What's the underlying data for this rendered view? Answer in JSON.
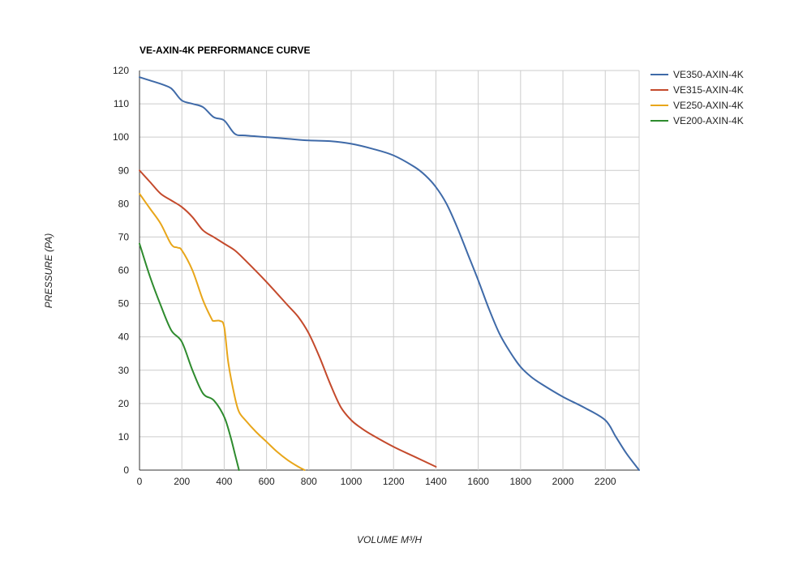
{
  "chart_data": {
    "type": "line",
    "title": "VE-AXIN-4K PERFORMANCE CURVE",
    "xlabel": "VOLUME M³/H",
    "ylabel": "PRESSURE (PA)",
    "xlim": [
      0,
      2360
    ],
    "ylim": [
      0,
      120
    ],
    "x_ticks": [
      0,
      200,
      400,
      600,
      800,
      1000,
      1200,
      1400,
      1600,
      1800,
      2000,
      2200
    ],
    "y_ticks": [
      0,
      10,
      20,
      30,
      40,
      50,
      60,
      70,
      80,
      90,
      100,
      110,
      120
    ],
    "grid": true,
    "legend_position": "right",
    "series": [
      {
        "name": "VE350-AXIN-4K",
        "color": "#3f6aa8",
        "points": [
          [
            0,
            118
          ],
          [
            50,
            117
          ],
          [
            100,
            116
          ],
          [
            140,
            115
          ],
          [
            160,
            114
          ],
          [
            200,
            111
          ],
          [
            250,
            110
          ],
          [
            300,
            109
          ],
          [
            350,
            106
          ],
          [
            400,
            105
          ],
          [
            450,
            101
          ],
          [
            500,
            100.5
          ],
          [
            600,
            100
          ],
          [
            700,
            99.5
          ],
          [
            800,
            99
          ],
          [
            900,
            98.8
          ],
          [
            1000,
            98
          ],
          [
            1100,
            96.5
          ],
          [
            1200,
            94.5
          ],
          [
            1300,
            91
          ],
          [
            1350,
            88.5
          ],
          [
            1400,
            85
          ],
          [
            1450,
            80
          ],
          [
            1500,
            73
          ],
          [
            1550,
            65
          ],
          [
            1600,
            57
          ],
          [
            1650,
            48.5
          ],
          [
            1700,
            41
          ],
          [
            1750,
            35.5
          ],
          [
            1800,
            31
          ],
          [
            1850,
            28
          ],
          [
            1900,
            25.8
          ],
          [
            2000,
            22
          ],
          [
            2100,
            18.8
          ],
          [
            2200,
            15
          ],
          [
            2250,
            10
          ],
          [
            2300,
            5
          ],
          [
            2360,
            0
          ]
        ]
      },
      {
        "name": "VE315-AXIN-4K",
        "color": "#c44a2c",
        "points": [
          [
            0,
            90
          ],
          [
            50,
            86.5
          ],
          [
            100,
            83
          ],
          [
            150,
            81
          ],
          [
            200,
            79
          ],
          [
            250,
            76
          ],
          [
            300,
            72
          ],
          [
            350,
            70
          ],
          [
            400,
            68
          ],
          [
            450,
            66
          ],
          [
            500,
            63
          ],
          [
            600,
            56.5
          ],
          [
            700,
            49.5
          ],
          [
            750,
            46
          ],
          [
            800,
            41
          ],
          [
            850,
            34
          ],
          [
            900,
            26
          ],
          [
            950,
            19
          ],
          [
            1000,
            15
          ],
          [
            1050,
            12.5
          ],
          [
            1100,
            10.5
          ],
          [
            1200,
            7
          ],
          [
            1300,
            4
          ],
          [
            1400,
            1
          ]
        ]
      },
      {
        "name": "VE250-AXIN-4K",
        "color": "#e8a61a",
        "points": [
          [
            0,
            83
          ],
          [
            50,
            78.5
          ],
          [
            100,
            74
          ],
          [
            150,
            67.8
          ],
          [
            180,
            66.8
          ],
          [
            200,
            66
          ],
          [
            250,
            60
          ],
          [
            300,
            51
          ],
          [
            340,
            45.5
          ],
          [
            350,
            44.8
          ],
          [
            380,
            44.8
          ],
          [
            400,
            43
          ],
          [
            420,
            32
          ],
          [
            450,
            22
          ],
          [
            470,
            17.5
          ],
          [
            500,
            15
          ],
          [
            550,
            11.5
          ],
          [
            600,
            8.5
          ],
          [
            650,
            5.5
          ],
          [
            700,
            3
          ],
          [
            750,
            1
          ],
          [
            780,
            0
          ]
        ]
      },
      {
        "name": "VE200-AXIN-4K",
        "color": "#2e8b2e",
        "points": [
          [
            0,
            68
          ],
          [
            50,
            58
          ],
          [
            100,
            49.5
          ],
          [
            150,
            42
          ],
          [
            200,
            38.5
          ],
          [
            250,
            30
          ],
          [
            300,
            23
          ],
          [
            350,
            21
          ],
          [
            400,
            16
          ],
          [
            430,
            10
          ],
          [
            450,
            5
          ],
          [
            470,
            0
          ]
        ]
      }
    ]
  }
}
